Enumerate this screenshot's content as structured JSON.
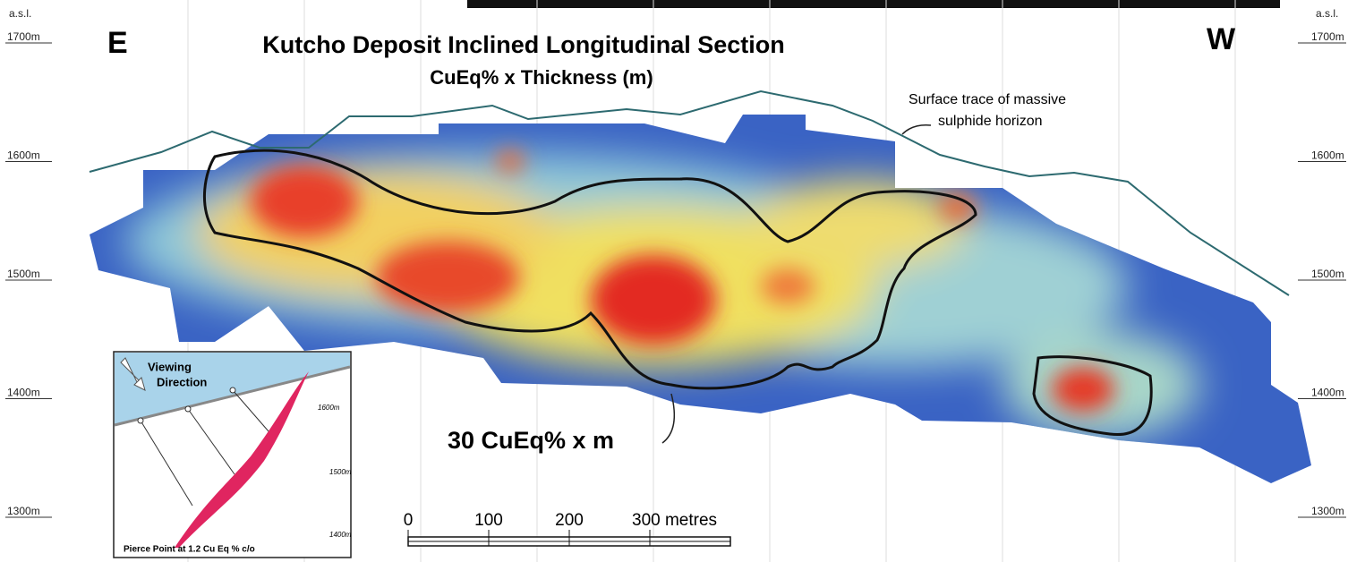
{
  "header": {
    "title": "Kutcho Deposit Inclined Longitudinal Section",
    "subtitle": "CuEq% x Thickness (m)",
    "left_label": "E",
    "right_label": "W"
  },
  "elevation_axis": {
    "unit_label": "a.s.l.",
    "labels": [
      "1700m",
      "1600m",
      "1500m",
      "1400m",
      "1300m"
    ]
  },
  "annotations": {
    "surface_trace": [
      "Surface trace of massive",
      "sulphide horizon"
    ],
    "contour_label": "30 CuEq% x m"
  },
  "scale_bar": {
    "labels": [
      "0",
      "100",
      "200",
      "300 metres"
    ]
  },
  "inset": {
    "viewing": [
      "Viewing",
      "Direction"
    ],
    "elevations": [
      "1600m",
      "1500m",
      "1400m"
    ],
    "caption": "Pierce Point at 1.2 Cu Eq % c/o"
  }
}
